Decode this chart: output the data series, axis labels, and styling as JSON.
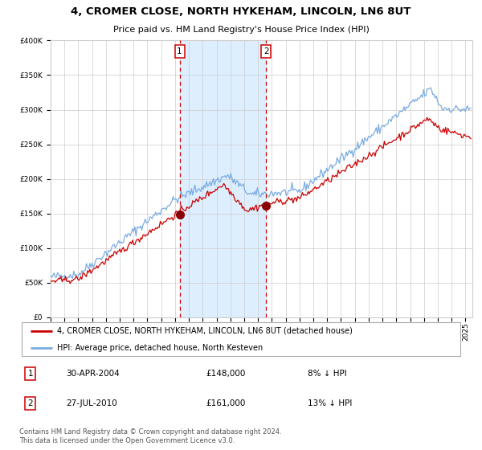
{
  "title": "4, CROMER CLOSE, NORTH HYKEHAM, LINCOLN, LN6 8UT",
  "subtitle": "Price paid vs. HM Land Registry's House Price Index (HPI)",
  "legend_line1": "4, CROMER CLOSE, NORTH HYKEHAM, LINCOLN, LN6 8UT (detached house)",
  "legend_line2": "HPI: Average price, detached house, North Kesteven",
  "annotation1_label": "1",
  "annotation1_date": "30-APR-2004",
  "annotation1_price": "£148,000",
  "annotation1_hpi": "8% ↓ HPI",
  "annotation2_label": "2",
  "annotation2_date": "27-JUL-2010",
  "annotation2_price": "£161,000",
  "annotation2_hpi": "13% ↓ HPI",
  "footer": "Contains HM Land Registry data © Crown copyright and database right 2024.\nThis data is licensed under the Open Government Licence v3.0.",
  "red_line_color": "#cc0000",
  "blue_line_color": "#7aace0",
  "shade_color": "#ddeeff",
  "background_color": "#ffffff",
  "grid_color": "#cccccc",
  "marker_color": "#880000",
  "marker1_x": 2004.33,
  "marker1_y": 148000,
  "marker2_x": 2010.58,
  "marker2_y": 161000,
  "vline1_x": 2004.33,
  "vline2_x": 2010.58,
  "ylim": [
    0,
    400000
  ],
  "xlim": [
    1995.0,
    2025.5
  ],
  "title_fontsize": 9.5,
  "subtitle_fontsize": 8,
  "tick_fontsize": 6.5,
  "legend_fontsize": 7,
  "ann_fontsize": 7.5,
  "footer_fontsize": 6
}
